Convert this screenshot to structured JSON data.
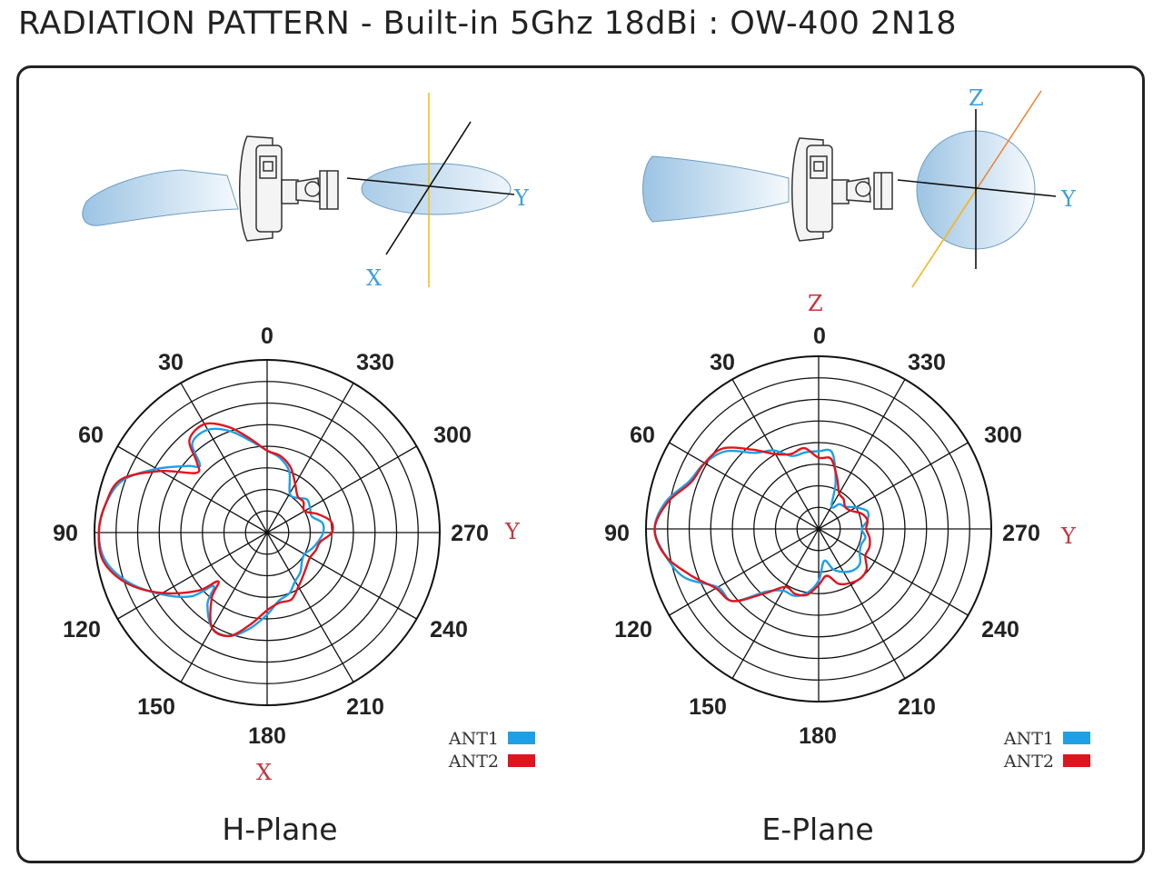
{
  "title": "RADIATION PATTERN - Built-in 5Ghz 18dBi : OW-400 2N18",
  "colors": {
    "ant1": "#1ea0e6",
    "ant2": "#e0141e",
    "axis_label_blue": "#3aa0dc",
    "axis_label_red": "#c8323c",
    "axis_yellow": "#f0c020",
    "axis_orange": "#f08030"
  },
  "h_plane": {
    "name": "H-Plane",
    "angle_labels": {
      "a0": "0",
      "a30": "30",
      "a60": "60",
      "a90": "90",
      "a120": "120",
      "a150": "150",
      "a180": "180",
      "a210": "210",
      "a240": "240",
      "a270": "270",
      "a300": "300",
      "a330": "330"
    },
    "axis_right": "Y",
    "axis_bottom": "X",
    "illustration": {
      "axis_y": "Y",
      "axis_x": "X"
    }
  },
  "e_plane": {
    "name": "E-Plane",
    "angle_labels": {
      "a0": "0",
      "a30": "30",
      "a60": "60",
      "a90": "90",
      "a120": "120",
      "a150": "150",
      "a180": "180",
      "a210": "210",
      "a240": "240",
      "a270": "270",
      "a300": "300",
      "a330": "330"
    },
    "axis_right": "Y",
    "axis_top": "Z",
    "illustration": {
      "axis_y": "Y",
      "axis_z": "Z"
    }
  },
  "legend": {
    "ant1": "ANT1",
    "ant2": "ANT2"
  },
  "chart_data": [
    {
      "type": "polar",
      "title": "H-Plane",
      "rings": 8,
      "angle_ticks_deg": [
        0,
        30,
        60,
        90,
        120,
        150,
        180,
        210,
        240,
        270,
        300,
        330
      ],
      "angles_deg": [
        0,
        10,
        20,
        30,
        40,
        45,
        50,
        60,
        70,
        80,
        90,
        100,
        110,
        120,
        130,
        135,
        140,
        150,
        160,
        170,
        180,
        190,
        200,
        210,
        220,
        230,
        240,
        250,
        260,
        270,
        280,
        290,
        300,
        310,
        320,
        330,
        340,
        350
      ],
      "series": [
        {
          "name": "ANT1",
          "values": [
            3.8,
            4.3,
            5.0,
            5.5,
            5.4,
            4.4,
            4.8,
            5.9,
            7.1,
            7.6,
            7.8,
            7.6,
            6.8,
            5.7,
            4.6,
            3.5,
            4.3,
            5.1,
            5.1,
            4.5,
            3.8,
            3.2,
            3.0,
            2.6,
            2.4,
            2.1,
            2.0,
            2.2,
            2.4,
            2.6,
            2.6,
            2.2,
            2.3,
            2.4,
            2.1,
            2.1,
            3.0,
            3.5
          ]
        },
        {
          "name": "ANT2",
          "values": [
            3.8,
            4.4,
            5.2,
            5.8,
            5.6,
            4.6,
            4.3,
            5.7,
            7.2,
            7.6,
            7.8,
            7.7,
            6.9,
            5.6,
            4.2,
            3.2,
            4.0,
            5.1,
            5.1,
            4.3,
            3.6,
            3.3,
            3.3,
            2.9,
            2.6,
            2.4,
            2.3,
            2.4,
            2.5,
            3.0,
            3.0,
            2.5,
            2.0,
            2.2,
            2.2,
            2.6,
            3.2,
            3.6
          ]
        }
      ]
    },
    {
      "type": "polar",
      "title": "E-Plane",
      "rings": 8,
      "angle_ticks_deg": [
        0,
        30,
        60,
        90,
        120,
        150,
        180,
        210,
        240,
        270,
        300,
        330
      ],
      "angles_deg": [
        0,
        10,
        20,
        30,
        40,
        50,
        60,
        70,
        80,
        90,
        100,
        110,
        120,
        130,
        140,
        150,
        160,
        170,
        180,
        190,
        200,
        210,
        220,
        230,
        240,
        250,
        260,
        270,
        280,
        290,
        300,
        310,
        320,
        330,
        340,
        350
      ],
      "series": [
        {
          "name": "ANT1",
          "values": [
            3.6,
            3.6,
            3.6,
            4.2,
            4.6,
            5.6,
            6.1,
            6.4,
            7.2,
            7.6,
            7.2,
            6.6,
            5.4,
            5.2,
            3.8,
            3.3,
            3.3,
            3.0,
            2.4,
            1.5,
            2.0,
            2.3,
            2.5,
            2.5,
            2.2,
            2.1,
            2.2,
            2.0,
            2.3,
            2.4,
            2.0,
            1.6,
            1.5,
            1.2,
            2.3,
            3.6
          ]
        },
        {
          "name": "ANT2",
          "values": [
            3.3,
            3.8,
            3.7,
            4.0,
            4.8,
            5.8,
            6.1,
            6.3,
            7.1,
            7.6,
            7.2,
            6.3,
            5.5,
            5.2,
            3.9,
            3.1,
            3.2,
            3.1,
            2.6,
            2.2,
            2.7,
            2.9,
            3.0,
            2.9,
            2.5,
            2.5,
            2.4,
            2.2,
            2.3,
            2.1,
            1.7,
            1.6,
            1.8,
            1.9,
            2.5,
            3.3
          ]
        }
      ]
    }
  ]
}
